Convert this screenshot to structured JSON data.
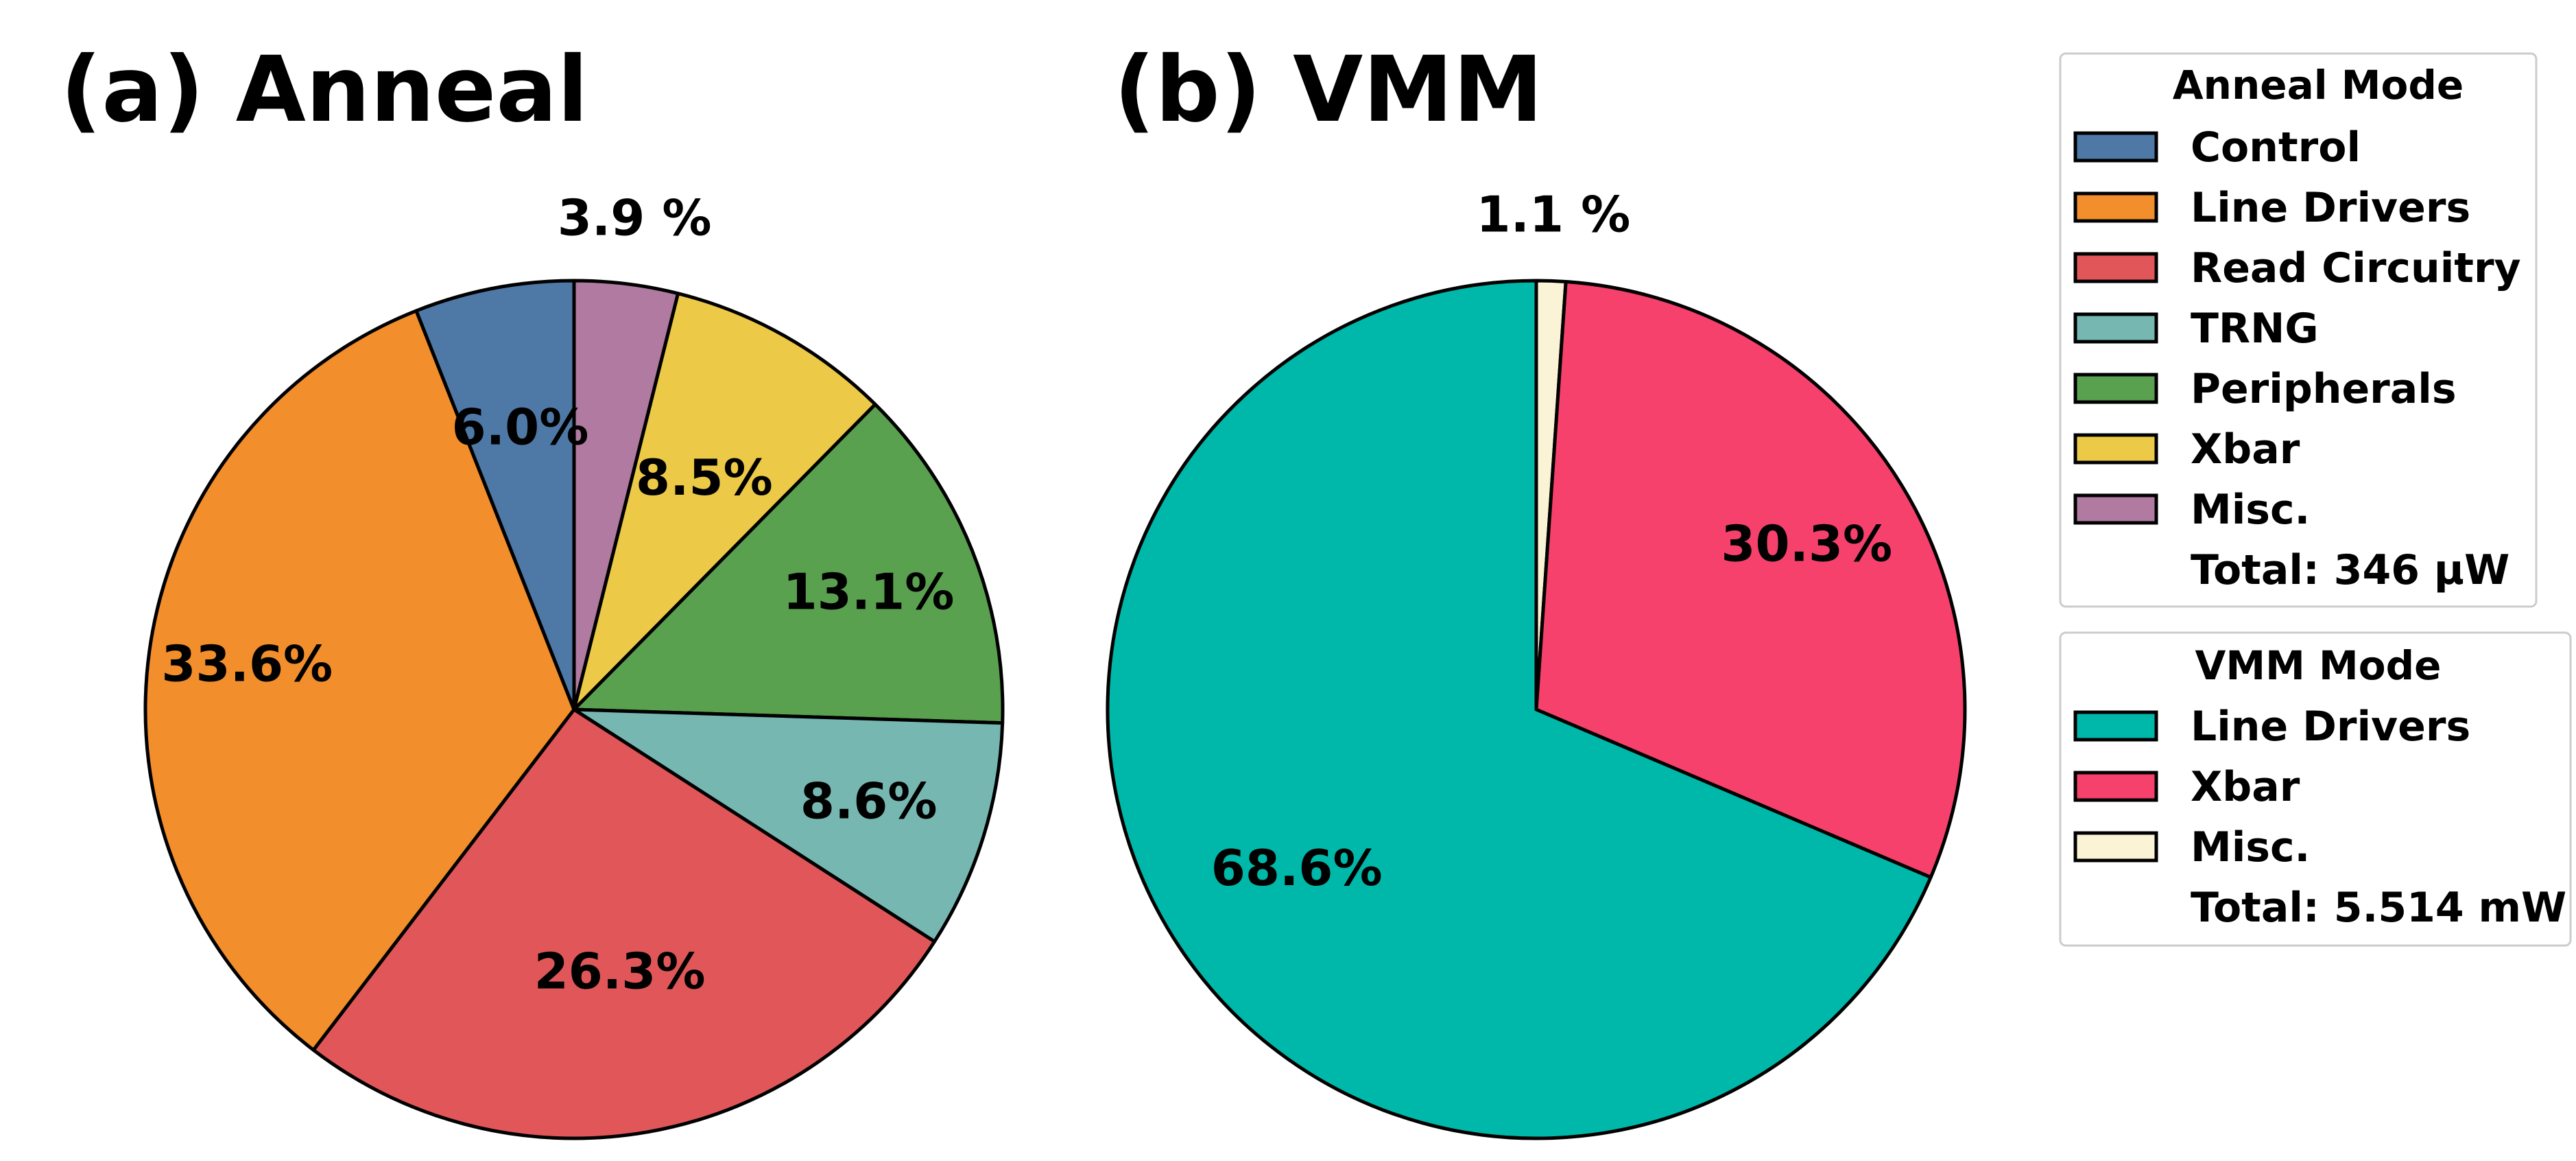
{
  "chart_data": [
    {
      "type": "pie",
      "title": "(a) Anneal",
      "slices": [
        {
          "label": "Misc.",
          "value": 3.9,
          "display": "3.9 %",
          "color": "#b07aa1"
        },
        {
          "label": "Xbar",
          "value": 8.5,
          "display": "8.5%",
          "color": "#edc948"
        },
        {
          "label": "Peripherals",
          "value": 13.1,
          "display": "13.1%",
          "color": "#59a14f"
        },
        {
          "label": "TRNG",
          "value": 8.6,
          "display": "8.6%",
          "color": "#76b7b2"
        },
        {
          "label": "Read Circuitry",
          "value": 26.3,
          "display": "26.3%",
          "color": "#e15759"
        },
        {
          "label": "Line Drivers",
          "value": 33.6,
          "display": "33.6%",
          "color": "#f28e2b"
        },
        {
          "label": "Control",
          "value": 6.0,
          "display": "6.0%",
          "color": "#4e79a7"
        }
      ],
      "start_angle_deg": 90,
      "direction": "clockwise",
      "legend": {
        "title": "Anneal Mode",
        "entries": [
          "Control",
          "Line Drivers",
          "Read Circuitry",
          "TRNG",
          "Peripherals",
          "Xbar",
          "Misc."
        ],
        "total": "Total: 346 µW",
        "placement": "top-right"
      }
    },
    {
      "type": "pie",
      "title": "(b) VMM",
      "slices": [
        {
          "label": "Misc.",
          "value": 1.1,
          "display": "1.1 %",
          "color": "#fbf3d5"
        },
        {
          "label": "Xbar",
          "value": 30.3,
          "display": "30.3%",
          "color": "#f6416c"
        },
        {
          "label": "Line Drivers",
          "value": 68.6,
          "display": "68.6%",
          "color": "#00b8a9"
        }
      ],
      "start_angle_deg": 90,
      "direction": "clockwise",
      "legend": {
        "title": "VMM Mode",
        "entries": [
          "Line Drivers",
          "Xbar",
          "Misc."
        ],
        "total": "Total: 5.514 mW",
        "placement": "right"
      }
    }
  ]
}
